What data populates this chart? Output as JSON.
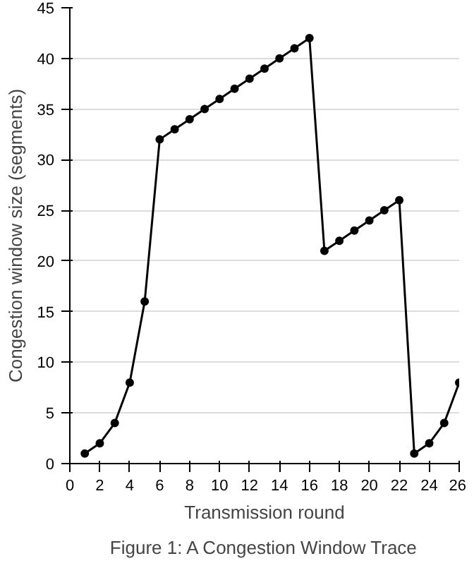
{
  "chart_data": {
    "type": "line",
    "xlabel": "Transmission round",
    "ylabel": "Congestion window size (segments)",
    "x": [
      1,
      2,
      3,
      4,
      5,
      6,
      7,
      8,
      9,
      10,
      11,
      12,
      13,
      14,
      15,
      16,
      17,
      18,
      19,
      20,
      21,
      22,
      23,
      24,
      25,
      26
    ],
    "series": [
      {
        "color": "#000000",
        "values": [
          1,
          2,
          4,
          8,
          16,
          32,
          33,
          34,
          35,
          36,
          37,
          38,
          39,
          40,
          41,
          42,
          21,
          22,
          23,
          24,
          25,
          26,
          1,
          2,
          4,
          8
        ]
      }
    ],
    "xlim": [
      0,
      26
    ],
    "xticks": [
      0,
      2,
      4,
      6,
      8,
      10,
      12,
      14,
      16,
      18,
      20,
      22,
      24,
      26
    ],
    "ylim": [
      0,
      45
    ],
    "yticks": [
      0,
      5,
      10,
      15,
      20,
      25,
      30,
      35,
      40,
      45
    ],
    "grid": "y",
    "marker": "circle",
    "line_style": "solid",
    "annotations": [
      "Figure 1: A Congestion Window Trace"
    ]
  }
}
